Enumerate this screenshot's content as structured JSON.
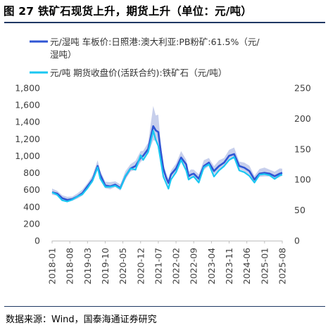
{
  "figure": {
    "title": "图 27  铁矿石现货上升，期货上升（单位：元/吨）",
    "source": "数据来源：Wind，国泰海通证券研究"
  },
  "colors": {
    "series1": "#2f55d4",
    "series1_band": "#b4bfe6",
    "series2": "#19c7f2",
    "title_rule": "#1f3864"
  },
  "chart_data": {
    "type": "line",
    "title": "",
    "legend_placement": "top-left",
    "grid": false,
    "x_tick_labels": [
      "2018-01",
      "2018-08",
      "2019-03",
      "2019-10",
      "2020-05",
      "2020-12",
      "2021-07",
      "2022-02",
      "2022-09",
      "2023-04",
      "2023-11",
      "2024-06",
      "2025-01",
      "2025-08"
    ],
    "x_range": [
      "2018-01",
      "2025-08"
    ],
    "y_left": {
      "ylim": [
        0,
        1800
      ],
      "ticks": [
        "0",
        "200",
        "400",
        "600",
        "800",
        "1,000",
        "1,200",
        "1,400",
        "1,600",
        "1,800"
      ]
    },
    "y_right": {
      "ylim": [
        0,
        250
      ],
      "ticks": [
        "0",
        "50",
        "100",
        "150",
        "200",
        "250"
      ]
    },
    "series": [
      {
        "name": "元/湿吨 车板价:日照港:澳大利亚:PB粉矿:61.5%（元/湿吨）",
        "axis": "left",
        "points": [
          [
            "2018-01",
            570
          ],
          [
            "2018-03",
            555
          ],
          [
            "2018-05",
            500
          ],
          [
            "2018-07",
            480
          ],
          [
            "2018-09",
            490
          ],
          [
            "2018-11",
            520
          ],
          [
            "2019-01",
            560
          ],
          [
            "2019-03",
            640
          ],
          [
            "2019-05",
            720
          ],
          [
            "2019-07",
            880
          ],
          [
            "2019-08",
            780
          ],
          [
            "2019-10",
            650
          ],
          [
            "2019-12",
            640
          ],
          [
            "2020-02",
            660
          ],
          [
            "2020-04",
            620
          ],
          [
            "2020-06",
            760
          ],
          [
            "2020-08",
            850
          ],
          [
            "2020-10",
            880
          ],
          [
            "2020-12",
            980
          ],
          [
            "2021-01",
            1000
          ],
          [
            "2021-03",
            1080
          ],
          [
            "2021-05",
            1350
          ],
          [
            "2021-06",
            1300
          ],
          [
            "2021-07",
            1280
          ],
          [
            "2021-08",
            1050
          ],
          [
            "2021-09",
            850
          ],
          [
            "2021-10",
            750
          ],
          [
            "2021-11",
            680
          ],
          [
            "2021-12",
            780
          ],
          [
            "2022-02",
            850
          ],
          [
            "2022-04",
            980
          ],
          [
            "2022-06",
            900
          ],
          [
            "2022-07",
            760
          ],
          [
            "2022-08",
            780
          ],
          [
            "2022-09",
            790
          ],
          [
            "2022-11",
            730
          ],
          [
            "2023-01",
            880
          ],
          [
            "2023-03",
            920
          ],
          [
            "2023-05",
            820
          ],
          [
            "2023-07",
            880
          ],
          [
            "2023-09",
            920
          ],
          [
            "2023-11",
            1000
          ],
          [
            "2024-01",
            1020
          ],
          [
            "2024-03",
            880
          ],
          [
            "2024-05",
            860
          ],
          [
            "2024-07",
            820
          ],
          [
            "2024-09",
            720
          ],
          [
            "2024-11",
            790
          ],
          [
            "2025-01",
            800
          ],
          [
            "2025-03",
            790
          ],
          [
            "2025-05",
            760
          ],
          [
            "2025-07",
            790
          ],
          [
            "2025-08",
            800
          ]
        ]
      },
      {
        "name": "元/吨 期货收盘价(活跃合约):铁矿石（元/吨）",
        "axis": "right",
        "points": [
          [
            "2018-01",
            79
          ],
          [
            "2018-03",
            75
          ],
          [
            "2018-05",
            66
          ],
          [
            "2018-07",
            64
          ],
          [
            "2018-09",
            67
          ],
          [
            "2018-11",
            72
          ],
          [
            "2019-01",
            76
          ],
          [
            "2019-03",
            86
          ],
          [
            "2019-05",
            98
          ],
          [
            "2019-07",
            120
          ],
          [
            "2019-08",
            102
          ],
          [
            "2019-10",
            88
          ],
          [
            "2019-12",
            88
          ],
          [
            "2020-02",
            90
          ],
          [
            "2020-04",
            85
          ],
          [
            "2020-06",
            106
          ],
          [
            "2020-08",
            118
          ],
          [
            "2020-10",
            116
          ],
          [
            "2020-12",
            140
          ],
          [
            "2021-01",
            132
          ],
          [
            "2021-03",
            145
          ],
          [
            "2021-05",
            180
          ],
          [
            "2021-06",
            165
          ],
          [
            "2021-07",
            155
          ],
          [
            "2021-08",
            130
          ],
          [
            "2021-09",
            105
          ],
          [
            "2021-10",
            95
          ],
          [
            "2021-11",
            85
          ],
          [
            "2021-12",
            100
          ],
          [
            "2022-02",
            112
          ],
          [
            "2022-04",
            132
          ],
          [
            "2022-06",
            115
          ],
          [
            "2022-07",
            100
          ],
          [
            "2022-08",
            103
          ],
          [
            "2022-09",
            105
          ],
          [
            "2022-11",
            95
          ],
          [
            "2023-01",
            120
          ],
          [
            "2023-03",
            125
          ],
          [
            "2023-05",
            105
          ],
          [
            "2023-07",
            115
          ],
          [
            "2023-09",
            122
          ],
          [
            "2023-11",
            132
          ],
          [
            "2024-01",
            137
          ],
          [
            "2024-03",
            115
          ],
          [
            "2024-05",
            112
          ],
          [
            "2024-07",
            106
          ],
          [
            "2024-09",
            95
          ],
          [
            "2024-11",
            108
          ],
          [
            "2025-01",
            109
          ],
          [
            "2025-03",
            107
          ],
          [
            "2025-05",
            101
          ],
          [
            "2025-07",
            107
          ],
          [
            "2025-08",
            108
          ]
        ]
      }
    ]
  }
}
